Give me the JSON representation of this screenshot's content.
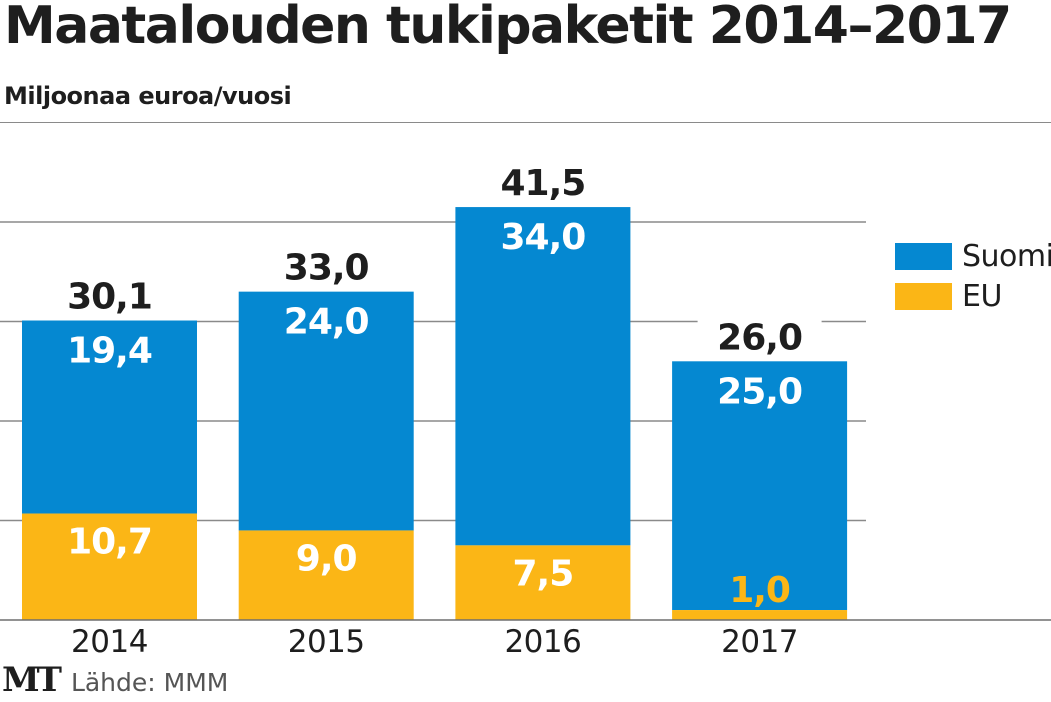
{
  "header": {
    "title": "Maatalouden tukipaketit 2014–2017",
    "subtitle": "Miljoonaa euroa/vuosi"
  },
  "legend": [
    {
      "label": "Suomi",
      "color": "#0588d1"
    },
    {
      "label": "EU",
      "color": "#fbb616"
    }
  ],
  "footer": {
    "logo": "MT",
    "source": "Lähde: MMM"
  },
  "chart_data": {
    "type": "bar",
    "stacked": true,
    "title": "Maatalouden tukipaketit 2014–2017",
    "subtitle": "Miljoonaa euroa/vuosi",
    "xlabel": "",
    "ylabel": "Miljoonaa euroa/vuosi",
    "ylim": [
      0,
      50
    ],
    "gridlines": [
      10,
      20,
      30,
      40
    ],
    "grid": true,
    "legend_position": "right",
    "categories": [
      "2014",
      "2015",
      "2016",
      "2017"
    ],
    "series": [
      {
        "name": "EU",
        "color": "#fbb616",
        "values": [
          10.7,
          9.0,
          7.5,
          1.0
        ],
        "labels": [
          "10,7",
          "9,0",
          "7,5",
          "1,0"
        ]
      },
      {
        "name": "Suomi",
        "color": "#0588d1",
        "values": [
          19.4,
          24.0,
          34.0,
          25.0
        ],
        "labels": [
          "19,4",
          "24,0",
          "34,0",
          "25,0"
        ]
      }
    ],
    "totals": [
      30.1,
      33.0,
      41.5,
      26.0
    ],
    "total_labels": [
      "30,1",
      "33,0",
      "41,5",
      "26,0"
    ]
  }
}
